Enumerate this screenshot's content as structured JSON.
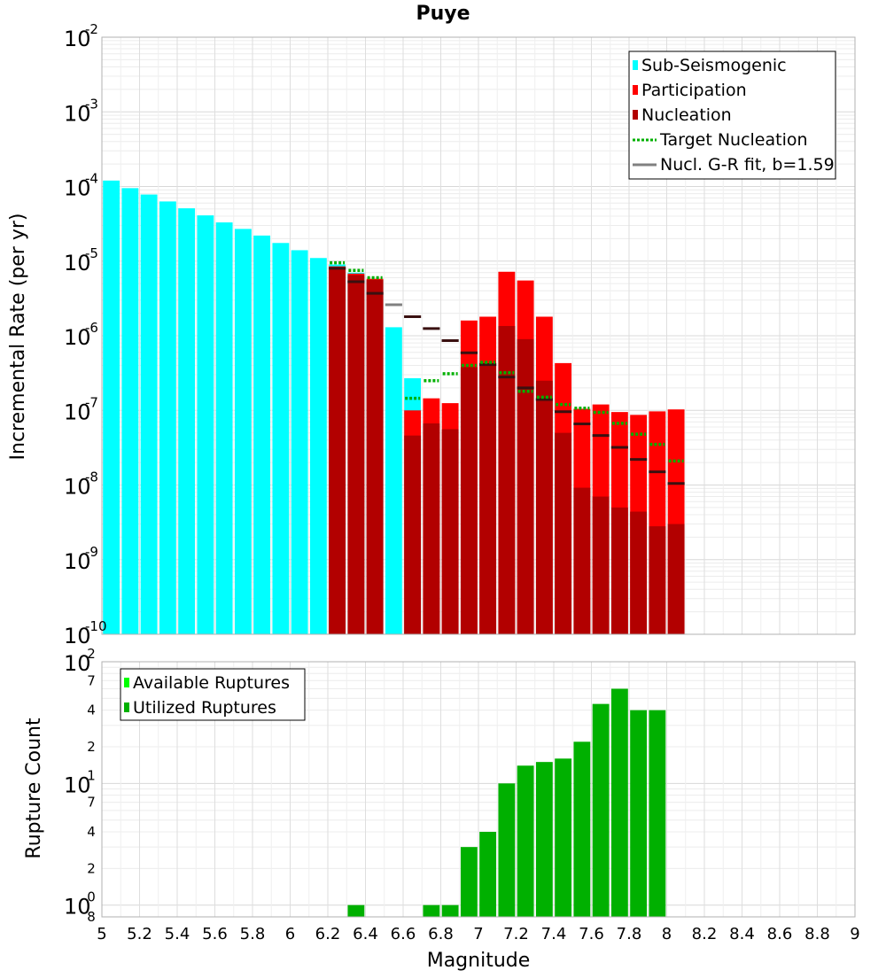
{
  "chart_data": [
    {
      "type": "bar",
      "title": "Puye",
      "ylabel": "Incremental Rate (per yr)",
      "y_scale": "log",
      "ylim": [
        1e-10,
        0.01
      ],
      "xlim": [
        5,
        9
      ],
      "bin_width": 0.1,
      "y_tick_bases": [
        "10",
        "10",
        "10",
        "10",
        "10",
        "10",
        "10",
        "10",
        "10"
      ],
      "y_tick_exponents": [
        "-10",
        "-9",
        "-8",
        "-7",
        "-6",
        "-5",
        "-4",
        "-3",
        "-2"
      ],
      "y_tick_values": [
        1e-10,
        1e-09,
        1e-08,
        1e-07,
        1e-06,
        1e-05,
        0.0001,
        0.001,
        0.01
      ],
      "legend": {
        "position": "top-right",
        "entries": [
          {
            "label": "Sub-Seismogenic",
            "color": "#00ffff",
            "style": "box"
          },
          {
            "label": "Participation",
            "color": "#ff0000",
            "style": "box"
          },
          {
            "label": "Nucleation",
            "color": "#b20000",
            "style": "box"
          },
          {
            "label": "Target Nucleation",
            "color": "#00b000",
            "style": "dotted"
          },
          {
            "label": "Nucl. G-R fit, b=1.59",
            "color": "#808080",
            "style": "solid"
          }
        ]
      },
      "series": [
        {
          "name": "Sub-Seismogenic",
          "color": "#00ffff",
          "x": [
            5.05,
            5.15,
            5.25,
            5.35,
            5.45,
            5.55,
            5.65,
            5.75,
            5.85,
            5.95,
            6.05,
            6.15,
            6.25,
            6.35,
            6.45,
            6.55,
            6.65
          ],
          "values": [
            0.00012,
            9.5e-05,
            7.8e-05,
            6.3e-05,
            5.1e-05,
            4.1e-05,
            3.3e-05,
            2.7e-05,
            2.2e-05,
            1.75e-05,
            1.4e-05,
            1.1e-05,
            9e-06,
            7e-06,
            5.5e-06,
            1.3e-06,
            2.7e-07
          ]
        },
        {
          "name": "Participation",
          "color": "#ff0000",
          "x": [
            6.25,
            6.35,
            6.45,
            6.65,
            6.75,
            6.85,
            6.95,
            7.05,
            7.15,
            7.25,
            7.35,
            7.45,
            7.55,
            7.65,
            7.75,
            7.85,
            7.95,
            8.05
          ],
          "values": [
            8.5e-06,
            6.8e-06,
            5.8e-06,
            1e-07,
            1.45e-07,
            1.25e-07,
            1.6e-06,
            1.8e-06,
            7.2e-06,
            5.5e-06,
            1.8e-06,
            4.3e-07,
            1.05e-07,
            1.2e-07,
            9.5e-08,
            8.7e-08,
            9.7e-08,
            1.03e-07
          ]
        },
        {
          "name": "Nucleation",
          "color": "#b20000",
          "x": [
            6.25,
            6.35,
            6.45,
            6.65,
            6.75,
            6.85,
            6.95,
            7.05,
            7.15,
            7.25,
            7.35,
            7.45,
            7.55,
            7.65,
            7.75,
            7.85,
            7.95,
            8.05
          ],
          "values": [
            8.2e-06,
            6.5e-06,
            5.6e-06,
            4.6e-08,
            6.7e-08,
            5.6e-08,
            3.8e-07,
            4.3e-07,
            1.35e-06,
            9e-07,
            2.5e-07,
            5e-08,
            9.2e-09,
            7e-09,
            5e-09,
            4.4e-09,
            2.8e-09,
            3e-09
          ]
        },
        {
          "name": "Target Nucleation",
          "color": "#00b000",
          "x": [
            6.25,
            6.35,
            6.45,
            6.65,
            6.75,
            6.85,
            6.95,
            7.05,
            7.15,
            7.25,
            7.35,
            7.45,
            7.55,
            7.65,
            7.75,
            7.85,
            7.95,
            8.05
          ],
          "values": [
            9.5e-06,
            7.5e-06,
            6e-06,
            1.45e-07,
            2.5e-07,
            3.1e-07,
            4e-07,
            4.4e-07,
            3.2e-07,
            1.8e-07,
            1.5e-07,
            1.2e-07,
            1.07e-07,
            9.4e-08,
            6.7e-08,
            4.8e-08,
            3.5e-08,
            2.1e-08
          ]
        },
        {
          "name": "Nucl. G-R fit, b=1.59",
          "color": "#808080",
          "x": [
            6.25,
            6.35,
            6.45,
            6.55,
            6.65,
            6.75,
            6.85,
            6.95,
            7.05,
            7.15,
            7.25,
            7.35,
            7.45,
            7.55,
            7.65,
            7.75,
            7.85,
            7.95,
            8.05
          ],
          "values": [
            8e-06,
            5.3e-06,
            3.7e-06,
            2.6e-06,
            1.8e-06,
            1.25e-06,
            8.6e-07,
            5.9e-07,
            4.1e-07,
            2.8e-07,
            2e-07,
            1.4e-07,
            9.6e-08,
            6.6e-08,
            4.6e-08,
            3.2e-08,
            2.2e-08,
            1.5e-08,
            1.05e-08
          ]
        }
      ]
    },
    {
      "type": "bar",
      "xlabel": "Magnitude",
      "ylabel": "Rupture Count",
      "y_scale": "log",
      "ylim": [
        0.8,
        100
      ],
      "xlim": [
        5,
        9
      ],
      "bin_width": 0.1,
      "x_ticks": [
        "5",
        "5.2",
        "5.4",
        "5.6",
        "5.8",
        "6",
        "6.2",
        "6.4",
        "6.6",
        "6.8",
        "7",
        "7.2",
        "7.4",
        "7.6",
        "7.8",
        "8",
        "8.2",
        "8.4",
        "8.6",
        "8.8",
        "9"
      ],
      "y_major_ticks": [
        {
          "value": 1,
          "base": "10",
          "exp": "0"
        },
        {
          "value": 10,
          "base": "10",
          "exp": "1"
        },
        {
          "value": 100,
          "base": "10",
          "exp": "2"
        }
      ],
      "y_minor_ticks": [
        {
          "value": 0.8,
          "label": "8"
        },
        {
          "value": 2,
          "label": "2"
        },
        {
          "value": 4,
          "label": "4"
        },
        {
          "value": 7,
          "label": "7"
        },
        {
          "value": 20,
          "label": "2"
        },
        {
          "value": 40,
          "label": "4"
        },
        {
          "value": 70,
          "label": "7"
        }
      ],
      "legend": {
        "position": "top-left",
        "entries": [
          {
            "label": "Available Ruptures",
            "color": "#00ff00"
          },
          {
            "label": "Utilized Ruptures",
            "color": "#00b000"
          }
        ]
      },
      "series": [
        {
          "name": "Utilized Ruptures",
          "color": "#00b000",
          "x": [
            6.35,
            6.75,
            6.85,
            6.95,
            7.05,
            7.15,
            7.25,
            7.35,
            7.45,
            7.55,
            7.65,
            7.75,
            7.85,
            7.95
          ],
          "values": [
            1,
            1,
            1,
            3,
            4,
            10,
            14,
            15,
            16,
            22,
            45,
            60,
            40,
            40
          ]
        }
      ]
    }
  ]
}
